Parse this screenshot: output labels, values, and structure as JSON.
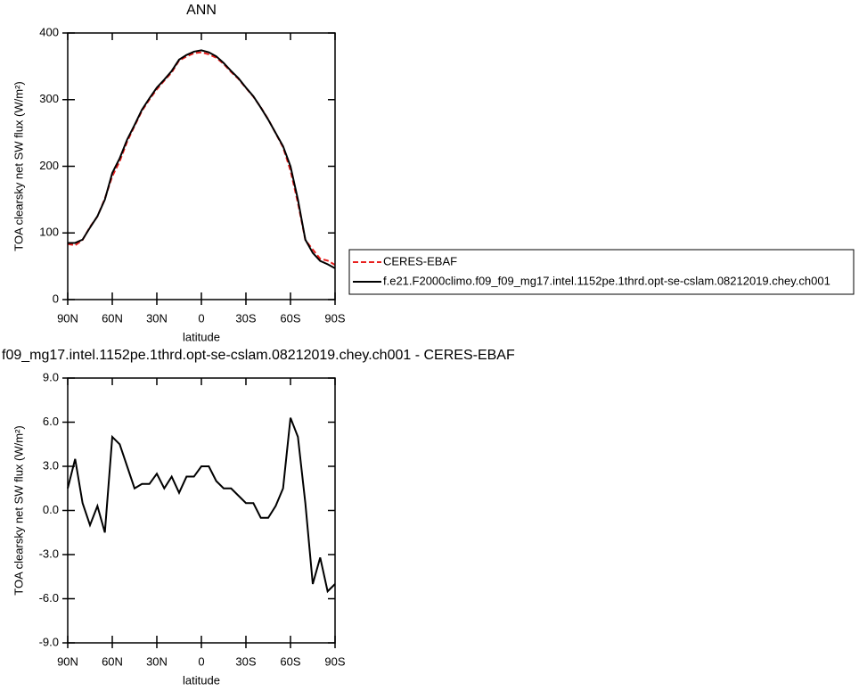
{
  "chart_data": [
    {
      "type": "line",
      "title": "ANN",
      "xlabel": "latitude",
      "ylabel": "TOA clearsky net SW flux (W/m²)",
      "x": [
        90,
        85,
        80,
        75,
        70,
        65,
        60,
        55,
        50,
        45,
        40,
        35,
        30,
        25,
        20,
        15,
        10,
        5,
        0,
        -5,
        -10,
        -15,
        -20,
        -25,
        -30,
        -35,
        -40,
        -45,
        -50,
        -55,
        -60,
        -65,
        -70,
        -75,
        -80,
        -85,
        -90
      ],
      "xlim": [
        90,
        -90
      ],
      "xticks": [
        {
          "value": 90,
          "label": "90N"
        },
        {
          "value": 60,
          "label": "60N"
        },
        {
          "value": 30,
          "label": "30N"
        },
        0,
        {
          "value": -30,
          "label": "30S"
        },
        {
          "value": -60,
          "label": "60S"
        },
        {
          "value": -90,
          "label": "90S"
        }
      ],
      "ylim": [
        0,
        400
      ],
      "yticks": [
        0,
        100,
        200,
        300,
        400
      ],
      "series": [
        {
          "name": "CERES-EBAF",
          "color": "#e8201e",
          "line_style": "dashed",
          "values": [
            83.5,
            81.5,
            89.5,
            109,
            124.7,
            151.5,
            185,
            207.5,
            237,
            260.5,
            283.2,
            300.2,
            315.5,
            328.5,
            340.7,
            358.8,
            364.7,
            369.7,
            371,
            368,
            363,
            353.5,
            341.5,
            331,
            317.5,
            304.5,
            288.5,
            270.5,
            249.7,
            228.5,
            193.7,
            145,
            89.5,
            75,
            61.2,
            58.5,
            52
          ]
        },
        {
          "name": "f.e21.F2000climo.f09_f09_mg17.intel.1152pe.1thrd.opt-se-cslam.08212019.chey.ch001",
          "color": "#000000",
          "line_style": "solid",
          "values": [
            85,
            85,
            90,
            108,
            125,
            150,
            190,
            212,
            240,
            262,
            285,
            302,
            318,
            330,
            343,
            360,
            367,
            372,
            374,
            371,
            365,
            355,
            343,
            332,
            318,
            305,
            288,
            270,
            250,
            230,
            200,
            150,
            90,
            70,
            58,
            53,
            47
          ]
        }
      ]
    },
    {
      "type": "line",
      "title": "f09_mg17.intel.1152pe.1thrd.opt-se-cslam.08212019.chey.ch001 - CERES-EBAF",
      "xlabel": "latitude",
      "ylabel": "TOA clearsky net SW flux (W/m²)",
      "x": [
        90,
        85,
        80,
        75,
        70,
        65,
        60,
        55,
        50,
        45,
        40,
        35,
        30,
        25,
        20,
        15,
        10,
        5,
        0,
        -5,
        -10,
        -15,
        -20,
        -25,
        -30,
        -35,
        -40,
        -45,
        -50,
        -55,
        -60,
        -65,
        -70,
        -75,
        -80,
        -85,
        -90
      ],
      "xlim": [
        90,
        -90
      ],
      "xticks": [
        {
          "value": 90,
          "label": "90N"
        },
        {
          "value": 60,
          "label": "60N"
        },
        {
          "value": 30,
          "label": "30N"
        },
        0,
        {
          "value": -30,
          "label": "30S"
        },
        {
          "value": -60,
          "label": "60S"
        },
        {
          "value": -90,
          "label": "90S"
        }
      ],
      "ylim": [
        -9,
        9
      ],
      "yticks": [
        {
          "value": -9,
          "label": "-9.0"
        },
        {
          "value": -6,
          "label": "-6.0"
        },
        {
          "value": -3,
          "label": "-3.0"
        },
        {
          "value": 0,
          "label": "0.0"
        },
        {
          "value": 3,
          "label": "3.0"
        },
        {
          "value": 6,
          "label": "6.0"
        },
        {
          "value": 9,
          "label": "9.0"
        }
      ],
      "color": "#000000",
      "values": [
        1.5,
        3.5,
        0.5,
        -1,
        0.3,
        -1.5,
        5.0,
        4.5,
        3.0,
        1.5,
        1.8,
        1.8,
        2.5,
        1.5,
        2.3,
        1.2,
        2.3,
        2.3,
        3.0,
        3.0,
        2.0,
        1.5,
        1.5,
        1.0,
        0.5,
        0.5,
        -0.5,
        -0.5,
        0.3,
        1.5,
        6.3,
        5.0,
        0.5,
        -5.0,
        -3.2,
        -5.5,
        -5.0
      ]
    }
  ]
}
